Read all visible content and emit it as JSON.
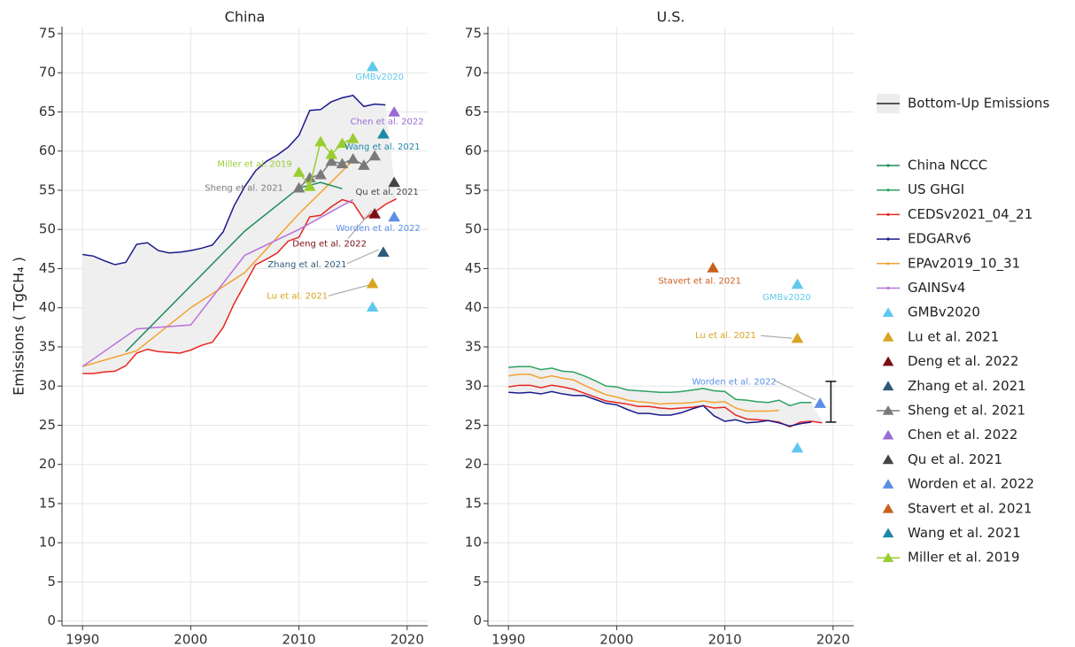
{
  "legend": [
    {
      "name": "Bottom-Up Emissions",
      "symbol": "band"
    },
    {
      "name": "China NCCC",
      "color": "#1e8c5a",
      "symbol": "line"
    },
    {
      "name": "US GHGI",
      "color": "#2ca25f",
      "symbol": "line"
    },
    {
      "name": "CEDSv2021_04_21",
      "color": "#e8261f",
      "symbol": "line"
    },
    {
      "name": "EDGARv6",
      "color": "#1a1a8c",
      "symbol": "line"
    },
    {
      "name": "EPAv2019_10_31",
      "color": "#f5a030",
      "symbol": "line"
    },
    {
      "name": "GAINSv4",
      "color": "#b872dc",
      "symbol": "line"
    },
    {
      "name": "GMBv2020",
      "color": "#5fc8ef",
      "symbol": "triangle"
    },
    {
      "name": "Lu et al. 2021",
      "color": "#d9a520",
      "symbol": "triangle"
    },
    {
      "name": "Deng et al. 2022",
      "color": "#7a0e14",
      "symbol": "triangle"
    },
    {
      "name": "Zhang et al. 2021",
      "color": "#2e5a7a",
      "symbol": "triangle"
    },
    {
      "name": "Sheng et al. 2021",
      "color": "#7a7a7a",
      "symbol": "line-triangle"
    },
    {
      "name": "Chen et al. 2022",
      "color": "#9b6bd6",
      "symbol": "triangle"
    },
    {
      "name": "Qu et al. 2021",
      "color": "#444444",
      "symbol": "triangle"
    },
    {
      "name": "Worden et al. 2022",
      "color": "#5b8fe6",
      "symbol": "triangle"
    },
    {
      "name": "Stavert et al. 2021",
      "color": "#c8601e",
      "symbol": "triangle"
    },
    {
      "name": "Wang et al. 2021",
      "color": "#1f87a8",
      "symbol": "triangle"
    },
    {
      "name": "Miller et al. 2019",
      "color": "#9acd32",
      "symbol": "line-triangle"
    }
  ],
  "chart_data": [
    {
      "type": "line",
      "title": "China",
      "y_label": "Emissions ( TgCH₄ )",
      "xlim": [
        1988.1,
        2021.9
      ],
      "ylim": [
        -0.6,
        75.9
      ],
      "xticks": [
        1990,
        2000,
        2010,
        2020
      ],
      "yticks": [
        0,
        5,
        10,
        15,
        20,
        25,
        30,
        35,
        40,
        45,
        50,
        55,
        60,
        65,
        70,
        75
      ],
      "grid": true,
      "series": [
        {
          "color": "#1a1a8c",
          "band": true,
          "x": [
            1990,
            1991,
            1992,
            1993,
            1994,
            1995,
            1996,
            1997,
            1998,
            1999,
            2000,
            2001,
            2002,
            2003,
            2004,
            2005,
            2006,
            2007,
            2008,
            2009,
            2010,
            2011,
            2012,
            2013,
            2014,
            2015,
            2016,
            2017,
            2018
          ],
          "values": [
            46.8,
            46.6,
            46,
            45.5,
            45.8,
            48.1,
            48.3,
            47.3,
            47,
            47.1,
            47.3,
            47.6,
            48,
            49.7,
            53,
            55.5,
            57.5,
            58.7,
            59.5,
            60.5,
            62,
            65.2,
            65.3,
            66.3,
            66.8,
            67.1,
            65.7,
            66,
            65.9
          ]
        },
        {
          "color": "#e8261f",
          "band": true,
          "x": [
            1990,
            1991,
            1992,
            1993,
            1994,
            1995,
            1996,
            1997,
            1998,
            1999,
            2000,
            2001,
            2002,
            2003,
            2004,
            2005,
            2006,
            2007,
            2008,
            2009,
            2010,
            2011,
            2012,
            2013,
            2014,
            2015,
            2016,
            2017,
            2018,
            2019
          ],
          "values": [
            31.6,
            31.6,
            31.8,
            31.9,
            32.6,
            34.2,
            34.7,
            34.4,
            34.3,
            34.2,
            34.6,
            35.2,
            35.6,
            37.5,
            40.5,
            43,
            45.5,
            46.2,
            47,
            48.5,
            49,
            51.6,
            51.8,
            52.9,
            53.8,
            53.4,
            51.3,
            52.2,
            53.2,
            53.9
          ]
        },
        {
          "color": "#f5a030",
          "band": true,
          "x": [
            1990,
            1995,
            2000,
            2005,
            2010,
            2015
          ],
          "values": [
            32.5,
            34.5,
            40,
            44.5,
            52,
            58.8
          ]
        },
        {
          "color": "#b872dc",
          "band": true,
          "x": [
            1990,
            1995,
            2000,
            2005,
            2010,
            2015
          ],
          "values": [
            32.5,
            37.3,
            37.8,
            46.7,
            50,
            53.8
          ]
        },
        {
          "color": "#1e8c5a",
          "band": true,
          "x": [
            1994,
            2005,
            2010,
            2012,
            2014
          ],
          "values": [
            34.4,
            49.8,
            55.3,
            56,
            55.2
          ]
        },
        {
          "color": "#7a7a7a",
          "marker": "triangle",
          "label": "Sheng et al. 2021",
          "x": [
            2010,
            2011,
            2012,
            2013,
            2014,
            2015,
            2016,
            2017
          ],
          "values": [
            55.3,
            56.6,
            57,
            58.7,
            58.4,
            59,
            58.2,
            59.4
          ]
        },
        {
          "color": "#9acd32",
          "marker": "triangle",
          "label": "Miller et al. 2019",
          "x": [
            2010,
            2011,
            2012,
            2013,
            2014,
            2015
          ],
          "values": [
            57.3,
            55.5,
            61.2,
            59.6,
            61,
            61.6
          ]
        }
      ],
      "points": [
        {
          "label": "GMBv2020",
          "color": "#5fc8ef",
          "x": 2016.8,
          "y": 70.8
        },
        {
          "color": "#5fc8ef",
          "x": 2016.8,
          "y": 40.1
        },
        {
          "label": "Lu et al. 2021",
          "color": "#d9a520",
          "x": 2016.8,
          "y": 43.1
        },
        {
          "label": "Deng et al. 2022",
          "color": "#7a0e14",
          "x": 2017,
          "y": 52
        },
        {
          "label": "Zhang et al. 2021",
          "color": "#2e5a7a",
          "x": 2017.8,
          "y": 47.1
        },
        {
          "label": "Chen et al. 2022",
          "color": "#9b6bd6",
          "x": 2018.8,
          "y": 65
        },
        {
          "label": "Qu et al. 2021",
          "color": "#444444",
          "x": 2018.8,
          "y": 56
        },
        {
          "label": "Worden et al. 2022",
          "color": "#5b8fe6",
          "x": 2018.8,
          "y": 51.6
        },
        {
          "label": "Wang et al. 2021",
          "color": "#1f87a8",
          "x": 2017.8,
          "y": 62.2
        }
      ]
    },
    {
      "type": "line",
      "title": "U.S.",
      "xlim": [
        1988.1,
        2021.9
      ],
      "ylim": [
        -0.6,
        75.9
      ],
      "xticks": [
        1990,
        2000,
        2010,
        2020
      ],
      "yticks": [
        0,
        5,
        10,
        15,
        20,
        25,
        30,
        35,
        40,
        45,
        50,
        55,
        60,
        65,
        70,
        75
      ],
      "grid": true,
      "series": [
        {
          "color": "#2ca25f",
          "band": true,
          "x": [
            1990,
            1991,
            1992,
            1993,
            1994,
            1995,
            1996,
            1997,
            1998,
            1999,
            2000,
            2001,
            2002,
            2003,
            2004,
            2005,
            2006,
            2007,
            2008,
            2009,
            2010,
            2011,
            2012,
            2013,
            2014,
            2015,
            2016,
            2017,
            2018
          ],
          "values": [
            32.4,
            32.5,
            32.5,
            32.1,
            32.3,
            31.9,
            31.8,
            31.3,
            30.7,
            30,
            29.9,
            29.5,
            29.4,
            29.3,
            29.2,
            29.2,
            29.3,
            29.5,
            29.7,
            29.4,
            29.3,
            28.3,
            28.2,
            28,
            27.9,
            28.2,
            27.5,
            27.9,
            27.9
          ]
        },
        {
          "color": "#f5a030",
          "band": true,
          "x": [
            1990,
            1991,
            1992,
            1993,
            1994,
            1995,
            1996,
            1997,
            1998,
            1999,
            2000,
            2001,
            2002,
            2003,
            2004,
            2005,
            2006,
            2007,
            2008,
            2009,
            2010,
            2011,
            2012,
            2013,
            2014,
            2015
          ],
          "values": [
            31.3,
            31.5,
            31.5,
            31,
            31.3,
            31,
            30.8,
            30.1,
            29.5,
            28.9,
            28.6,
            28.2,
            28,
            27.9,
            27.7,
            27.8,
            27.8,
            27.9,
            28.1,
            27.9,
            28,
            27.2,
            26.8,
            26.8,
            26.8,
            26.9
          ]
        },
        {
          "color": "#e8261f",
          "band": true,
          "x": [
            1990,
            1991,
            1992,
            1993,
            1994,
            1995,
            1996,
            1997,
            1998,
            1999,
            2000,
            2001,
            2002,
            2003,
            2004,
            2005,
            2006,
            2007,
            2008,
            2009,
            2010,
            2011,
            2012,
            2013,
            2014,
            2015,
            2016,
            2017,
            2018,
            2019
          ],
          "values": [
            29.9,
            30.1,
            30.1,
            29.8,
            30.1,
            29.9,
            29.6,
            29.1,
            28.6,
            28.1,
            27.9,
            27.7,
            27.4,
            27.4,
            27.2,
            27.1,
            27.2,
            27.3,
            27.5,
            27.2,
            27.3,
            26.3,
            25.8,
            25.7,
            25.6,
            25.4,
            24.8,
            25.4,
            25.5,
            25.3
          ]
        },
        {
          "color": "#1a1a8c",
          "band": true,
          "x": [
            1990,
            1991,
            1992,
            1993,
            1994,
            1995,
            1996,
            1997,
            1998,
            1999,
            2000,
            2001,
            2002,
            2003,
            2004,
            2005,
            2006,
            2007,
            2008,
            2009,
            2010,
            2011,
            2012,
            2013,
            2014,
            2015,
            2016,
            2017,
            2018
          ],
          "values": [
            29.2,
            29.1,
            29.2,
            29,
            29.3,
            29,
            28.8,
            28.8,
            28.3,
            27.8,
            27.6,
            27,
            26.5,
            26.5,
            26.3,
            26.3,
            26.6,
            27.1,
            27.5,
            26.2,
            25.5,
            25.7,
            25.3,
            25.4,
            25.6,
            25.3,
            24.9,
            25.2,
            25.4
          ]
        }
      ],
      "points": [
        {
          "label": "Stavert et al. 2021",
          "color": "#c8601e",
          "x": 2008.9,
          "y": 45.1
        },
        {
          "label": "GMBv2020",
          "color": "#5fc8ef",
          "x": 2016.7,
          "y": 43
        },
        {
          "color": "#5fc8ef",
          "x": 2016.7,
          "y": 22.1
        },
        {
          "label": "Lu et al. 2021",
          "color": "#d9a520",
          "x": 2016.7,
          "y": 36.1
        },
        {
          "label": "Worden et al. 2022",
          "color": "#5b8fe6",
          "x": 2018.8,
          "y": 27.8
        }
      ],
      "range_bar": {
        "x": 2019.8,
        "low": 25.4,
        "high": 30.6
      }
    }
  ]
}
